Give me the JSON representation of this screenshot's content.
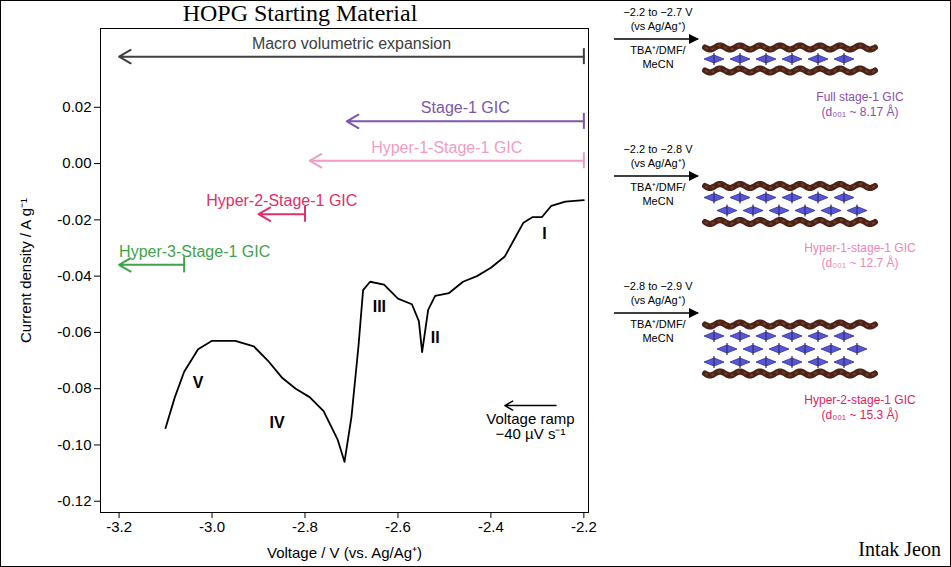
{
  "chart_data": {
    "type": "line",
    "title": "HOPG Starting Material",
    "x_label": "Voltage / V (vs. Ag/Ag⁺)",
    "y_label": "Current density / A g⁻¹",
    "color": "#000000",
    "x": [
      -3.1,
      -3.08,
      -3.06,
      -3.03,
      -3.0,
      -2.95,
      -2.91,
      -2.88,
      -2.85,
      -2.82,
      -2.79,
      -2.76,
      -2.73,
      -2.715,
      -2.7,
      -2.685,
      -2.675,
      -2.66,
      -2.63,
      -2.6,
      -2.57,
      -2.555,
      -2.548,
      -2.535,
      -2.52,
      -2.49,
      -2.46,
      -2.43,
      -2.4,
      -2.37,
      -2.35,
      -2.33,
      -2.31,
      -2.29,
      -2.27,
      -2.24,
      -2.2
    ],
    "values": [
      -0.094,
      -0.083,
      -0.074,
      -0.066,
      -0.063,
      -0.063,
      -0.065,
      -0.07,
      -0.076,
      -0.08,
      -0.083,
      -0.088,
      -0.098,
      -0.106,
      -0.09,
      -0.065,
      -0.045,
      -0.042,
      -0.043,
      -0.048,
      -0.05,
      -0.056,
      -0.067,
      -0.052,
      -0.047,
      -0.046,
      -0.042,
      -0.04,
      -0.037,
      -0.033,
      -0.027,
      -0.021,
      -0.019,
      -0.019,
      -0.015,
      -0.0135,
      -0.013
    ],
    "xlim": [
      -3.24,
      -2.19
    ],
    "xticks": [
      -3.2,
      {
        "value": -3.0,
        "label": "-3.0"
      },
      -2.8,
      -2.6,
      -2.4,
      -2.2
    ],
    "ylim": [
      -0.124,
      0.048
    ],
    "yticks": [
      0.02,
      {
        "value": 0,
        "label": "0.00"
      },
      -0.02,
      -0.04,
      -0.06,
      -0.08,
      {
        "value": -0.1,
        "label": "-0.10"
      },
      -0.12
    ],
    "grid": false,
    "annotations": [
      {
        "text": "I",
        "x": -2.285,
        "y": -0.025
      },
      {
        "text": "II",
        "x": -2.52,
        "y": -0.062
      },
      {
        "text": "III",
        "x": -2.64,
        "y": -0.051
      },
      {
        "text": "IV",
        "x": -2.86,
        "y": -0.092
      },
      {
        "text": "V",
        "x": -3.03,
        "y": -0.078
      }
    ],
    "ranges": [
      {
        "label": "Macro volumetric expansion",
        "from": -2.2,
        "to": -3.2,
        "y": 0.038,
        "color": "#404040"
      },
      {
        "label": "Stage-1 GIC",
        "from": -2.2,
        "to": -2.71,
        "y": 0.015,
        "color": "#7e57a8"
      },
      {
        "label": "Hyper-1-Stage-1 GIC",
        "from": -2.2,
        "to": -2.79,
        "y": 0.001,
        "color": "#f29bc4"
      },
      {
        "label": "Hyper-2-Stage-1 GIC",
        "from": -2.8,
        "to": -2.9,
        "y": -0.018,
        "color": "#e0306a"
      },
      {
        "label": "Hyper-3-Stage-1 GIC",
        "from": -3.06,
        "to": -3.2,
        "y": -0.036,
        "color": "#3ea34b"
      }
    ],
    "ramp": {
      "text": [
        "Voltage ramp",
        "−40 µV s⁻¹"
      ],
      "from": -2.26,
      "to": -2.37,
      "y": -0.086
    }
  },
  "schematics": [
    {
      "condition": "−2.2 to −2.7 V",
      "reference": "(vs Ag/Ag⁺)",
      "electrolyte": [
        "TBA⁺/DMF/",
        "MeCN"
      ],
      "label": "Full stage-1 GIC",
      "spacing": "(d₀₀₁ ~ 8.17 Å)",
      "color": "#8a4fb0",
      "intercalant_layers": 1
    },
    {
      "condition": "−2.2 to −2.8 V",
      "reference": "(vs Ag/Ag⁺)",
      "electrolyte": [
        "TBA⁺/DMF/",
        "MeCN"
      ],
      "label": "Hyper-1-stage-1 GIC",
      "spacing": "(d₀₀₁ ~ 12.7 Å)",
      "color": "#ee86b6",
      "intercalant_layers": 2
    },
    {
      "condition": "−2.8 to −2.9 V",
      "reference": "(vs Ag/Ag⁺)",
      "electrolyte": [
        "TBA⁺/DMF/",
        "MeCN"
      ],
      "label": "Hyper-2-stage-1 GIC",
      "spacing": "(d₀₀₁ ~ 15.3 Å)",
      "color": "#e0245e",
      "intercalant_layers": 3
    }
  ],
  "credit": "Intak Jeon"
}
